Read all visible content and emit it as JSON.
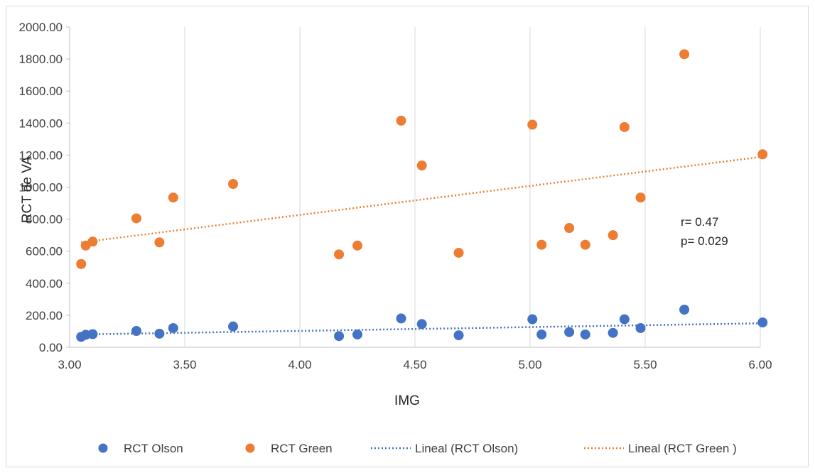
{
  "chart_data": {
    "type": "scatter",
    "xlabel": "IMG",
    "ylabel": "RCT de VA",
    "xlim": [
      3.0,
      6.0
    ],
    "ylim": [
      0,
      2000
    ],
    "x_ticks": [
      "3.00",
      "3.50",
      "4.00",
      "4.50",
      "5.00",
      "5.50",
      "6.00"
    ],
    "y_ticks": [
      "0.00",
      "200.00",
      "400.00",
      "600.00",
      "800.00",
      "1000.00",
      "1200.00",
      "1400.00",
      "1600.00",
      "1800.00",
      "2000.00"
    ],
    "grid": "vertical",
    "legend_position": "bottom",
    "annotations": [
      "r= 0.47",
      "p= 0.029"
    ],
    "series": [
      {
        "name": "RCT Olson",
        "color": "#4472c4",
        "points": [
          [
            3.05,
            65
          ],
          [
            3.07,
            78
          ],
          [
            3.1,
            82
          ],
          [
            3.29,
            102
          ],
          [
            3.39,
            85
          ],
          [
            3.45,
            120
          ],
          [
            3.71,
            130
          ],
          [
            4.17,
            70
          ],
          [
            4.25,
            80
          ],
          [
            4.44,
            180
          ],
          [
            4.53,
            145
          ],
          [
            4.69,
            75
          ],
          [
            5.01,
            175
          ],
          [
            5.05,
            80
          ],
          [
            5.17,
            95
          ],
          [
            5.24,
            80
          ],
          [
            5.36,
            90
          ],
          [
            5.41,
            175
          ],
          [
            5.48,
            120
          ],
          [
            5.67,
            235
          ],
          [
            6.01,
            155
          ]
        ]
      },
      {
        "name": "RCT Green",
        "color": "#ed7d31",
        "points": [
          [
            3.05,
            520
          ],
          [
            3.07,
            635
          ],
          [
            3.1,
            660
          ],
          [
            3.29,
            805
          ],
          [
            3.39,
            655
          ],
          [
            3.45,
            935
          ],
          [
            3.71,
            1020
          ],
          [
            4.17,
            580
          ],
          [
            4.25,
            635
          ],
          [
            4.44,
            1415
          ],
          [
            4.53,
            1135
          ],
          [
            4.69,
            590
          ],
          [
            5.01,
            1390
          ],
          [
            5.05,
            640
          ],
          [
            5.17,
            745
          ],
          [
            5.24,
            640
          ],
          [
            5.36,
            700
          ],
          [
            5.41,
            1375
          ],
          [
            5.48,
            935
          ],
          [
            5.67,
            1830
          ],
          [
            6.01,
            1205
          ]
        ]
      }
    ],
    "trendlines": [
      {
        "name": "Lineal (RCT Olson)",
        "color": "#4472c4",
        "x": [
          3.05,
          6.01
        ],
        "y": [
          80,
          150
        ]
      },
      {
        "name": "Lineal (RCT Green )",
        "color": "#ed7d31",
        "x": [
          3.05,
          6.01
        ],
        "y": [
          655,
          1190
        ]
      }
    ]
  }
}
